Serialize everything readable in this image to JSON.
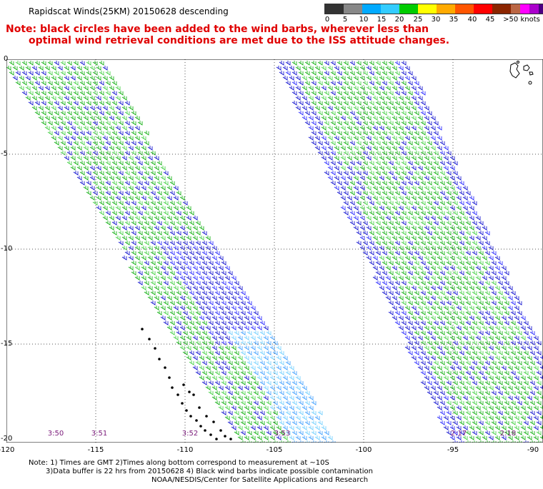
{
  "title": "Rapidscat Winds(25KM) 20150628 descending",
  "note": {
    "line1": "Note: black circles have been added to the wind barbs, wherever less than",
    "line2": "optimal wind retrieval conditions are met due to the ISS attitude changes."
  },
  "legend": {
    "colors": [
      "#333333",
      "#888888",
      "#00aaff",
      "#33ccff",
      "#00cc00",
      "#ffff00",
      "#ffaa00",
      "#ff5500",
      "#ff0000",
      "#8b2500",
      "#bb6644",
      "#ff00ff",
      "#aa00cc",
      "#4b0082"
    ],
    "labels": [
      "0",
      "5",
      "10",
      "15",
      "20",
      "25",
      "30",
      "35",
      "40",
      "45",
      ">50 knots"
    ]
  },
  "axes": {
    "x_ticks": [
      "-120",
      "-115",
      "-110",
      "-105",
      "-100",
      "-95",
      "-90"
    ],
    "y_ticks": [
      "0",
      "-5",
      "-10",
      "-15",
      "-20"
    ]
  },
  "pass_times": [
    "3:50",
    "3:51",
    "3:52",
    "3:53",
    "2:17",
    "2:18"
  ],
  "footer": {
    "line1": "Note: 1) Times are GMT 2)Times along bottom correspond to measurement at ~10S",
    "line2": "3)Data buffer is 22 hrs from 20150628 4) Black wind barbs indicate possible contamination",
    "line3": "NOAA/NESDIS/Center for Satellite Applications and Research"
  }
}
